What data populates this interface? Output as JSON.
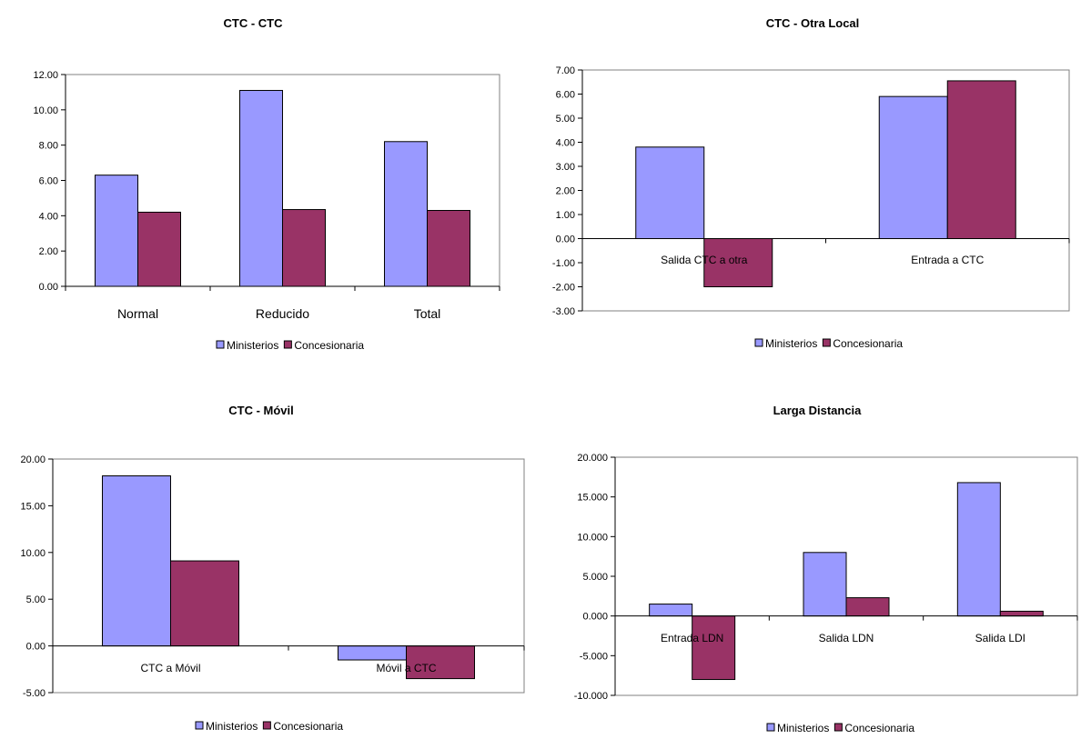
{
  "colors": {
    "ministerios": "#9999ff",
    "concesionaria": "#993366",
    "axis": "#000000"
  },
  "chart_data": [
    {
      "type": "bar",
      "title": "CTC - CTC",
      "categories": [
        "Normal",
        "Reducido",
        "Total"
      ],
      "series": [
        {
          "name": "Ministerios",
          "values": [
            6.3,
            11.1,
            8.2
          ]
        },
        {
          "name": "Concesionaria",
          "values": [
            4.2,
            4.35,
            4.3
          ]
        }
      ],
      "ylim": [
        0,
        12
      ],
      "yticks": [
        "0.00",
        "2.00",
        "4.00",
        "6.00",
        "8.00",
        "10.00",
        "12.00"
      ],
      "grid": false,
      "legend": "bottom"
    },
    {
      "type": "bar",
      "title": "CTC - Otra Local",
      "categories": [
        "Salida CTC a otra",
        "Entrada a CTC"
      ],
      "series": [
        {
          "name": "Ministerios",
          "values": [
            3.8,
            5.9
          ]
        },
        {
          "name": "Concesionaria",
          "values": [
            -2.0,
            6.55
          ]
        }
      ],
      "ylim": [
        -3,
        7
      ],
      "yticks": [
        "-3.00",
        "-2.00",
        "-1.00",
        "0.00",
        "1.00",
        "2.00",
        "3.00",
        "4.00",
        "5.00",
        "6.00",
        "7.00"
      ],
      "grid": false,
      "legend": "bottom"
    },
    {
      "type": "bar",
      "title": "CTC - Móvil",
      "categories": [
        "CTC a Móvil",
        "Móvil a CTC"
      ],
      "series": [
        {
          "name": "Ministerios",
          "values": [
            18.2,
            -1.5
          ]
        },
        {
          "name": "Concesionaria",
          "values": [
            9.1,
            -3.5
          ]
        }
      ],
      "ylim": [
        -5,
        20
      ],
      "yticks": [
        "-5.00",
        "0.00",
        "5.00",
        "10.00",
        "15.00",
        "20.00"
      ],
      "grid": false,
      "legend": "bottom"
    },
    {
      "type": "bar",
      "title": "Larga Distancia",
      "categories": [
        "Entrada LDN",
        "Salida LDN",
        "Salida LDI"
      ],
      "series": [
        {
          "name": "Ministerios",
          "values": [
            1.5,
            8.0,
            16.8
          ]
        },
        {
          "name": "Concesionaria",
          "values": [
            -8.0,
            2.3,
            0.6
          ]
        }
      ],
      "ylim": [
        -10,
        20
      ],
      "yticks": [
        "-10.000",
        "-5.000",
        "0.000",
        "5.000",
        "10.000",
        "15.000",
        "20.000"
      ],
      "grid": false,
      "legend": "bottom"
    }
  ]
}
